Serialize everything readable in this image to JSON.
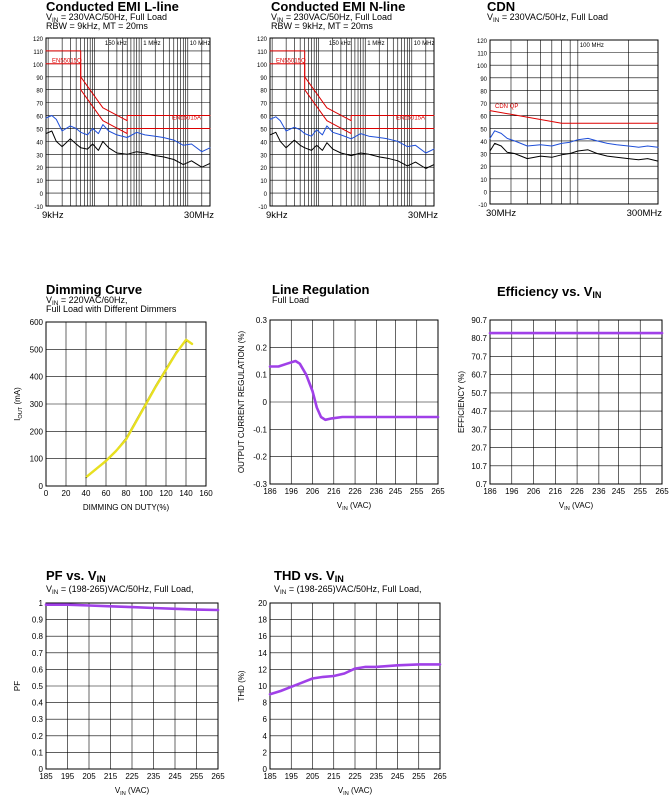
{
  "page": {
    "background": "#ffffff"
  },
  "chart_data": [
    {
      "id": "emi-l",
      "type": "line",
      "title": "Conducted EMI L-line",
      "subtitle_lines": [
        {
          "pre": "V",
          "sub": "IN",
          "post": " = 230VAC/50Hz, Full Load"
        },
        {
          "pre": "RBW = 9kHz, MT = 20ms"
        }
      ],
      "x_scale": "log",
      "x_tick_labels": [
        "9kHz",
        "30MHz"
      ],
      "xlim": [
        0.009,
        30
      ],
      "ylim": [
        -10,
        120
      ],
      "y_ticks": [
        -10,
        0,
        10,
        20,
        30,
        40,
        50,
        60,
        70,
        80,
        90,
        100,
        110,
        120
      ],
      "marker_labels": [
        "150 kHz",
        "1 MHz",
        "10 MHz"
      ],
      "marker_x": [
        0.15,
        1,
        10
      ],
      "limit_labels": [
        "EN55015Q",
        "EN55015A"
      ],
      "series": [
        {
          "color": "#dd0000",
          "x": [
            0.009,
            0.05,
            0.05,
            0.15,
            0.5,
            0.5,
            30
          ],
          "y": [
            110,
            110,
            90,
            66,
            56,
            60,
            60
          ]
        },
        {
          "color": "#dd0000",
          "x": [
            0.009,
            0.05,
            0.05,
            0.15,
            0.5,
            0.5,
            30
          ],
          "y": [
            100,
            100,
            80,
            56,
            46,
            50,
            50
          ]
        },
        {
          "color": "#1f4fd8",
          "x": [
            0.009,
            0.012,
            0.015,
            0.02,
            0.03,
            0.04,
            0.05,
            0.07,
            0.09,
            0.12,
            0.15,
            0.2,
            0.3,
            0.5,
            0.8,
            1.2,
            2,
            3,
            5,
            8,
            12,
            20,
            30
          ],
          "y": [
            58,
            60,
            57,
            48,
            52,
            50,
            47,
            45,
            50,
            46,
            53,
            48,
            45,
            43,
            47,
            45,
            44,
            43,
            41,
            37,
            38,
            32,
            35
          ]
        },
        {
          "color": "#000000",
          "x": [
            0.009,
            0.012,
            0.015,
            0.02,
            0.03,
            0.04,
            0.05,
            0.07,
            0.09,
            0.12,
            0.15,
            0.2,
            0.3,
            0.5,
            0.8,
            1.2,
            2,
            3,
            5,
            8,
            12,
            20,
            30
          ],
          "y": [
            46,
            48,
            40,
            36,
            42,
            38,
            35,
            34,
            38,
            33,
            40,
            35,
            31,
            30,
            32,
            31,
            29,
            28,
            26,
            22,
            25,
            20,
            23
          ]
        }
      ]
    },
    {
      "id": "emi-n",
      "type": "line",
      "title": "Conducted EMI N-line",
      "subtitle_lines": [
        {
          "pre": "V",
          "sub": "IN",
          "post": " = 230VAC/50Hz, Full Load"
        },
        {
          "pre": "RBW = 9kHz, MT = 20ms"
        }
      ],
      "x_scale": "log",
      "x_tick_labels": [
        "9kHz",
        "30MHz"
      ],
      "xlim": [
        0.009,
        30
      ],
      "ylim": [
        -10,
        120
      ],
      "y_ticks": [
        -10,
        0,
        10,
        20,
        30,
        40,
        50,
        60,
        70,
        80,
        90,
        100,
        110,
        120
      ],
      "marker_labels": [
        "150 kHz",
        "1 MHz",
        "10 MHz"
      ],
      "marker_x": [
        0.15,
        1,
        10
      ],
      "limit_labels": [
        "EN55015Q",
        "EN55015A"
      ],
      "series": [
        {
          "color": "#dd0000",
          "x": [
            0.009,
            0.05,
            0.05,
            0.15,
            0.5,
            0.5,
            30
          ],
          "y": [
            110,
            110,
            90,
            66,
            56,
            60,
            60
          ]
        },
        {
          "color": "#dd0000",
          "x": [
            0.009,
            0.05,
            0.05,
            0.15,
            0.5,
            0.5,
            30
          ],
          "y": [
            100,
            100,
            80,
            56,
            46,
            50,
            50
          ]
        },
        {
          "color": "#1f4fd8",
          "x": [
            0.009,
            0.012,
            0.015,
            0.02,
            0.03,
            0.04,
            0.05,
            0.07,
            0.09,
            0.12,
            0.15,
            0.2,
            0.3,
            0.5,
            0.8,
            1.2,
            2,
            3,
            5,
            8,
            12,
            20,
            30
          ],
          "y": [
            57,
            59,
            56,
            48,
            51,
            49,
            46,
            44,
            49,
            45,
            52,
            47,
            45,
            42,
            46,
            44,
            43,
            42,
            40,
            36,
            37,
            31,
            34
          ]
        },
        {
          "color": "#000000",
          "x": [
            0.009,
            0.012,
            0.015,
            0.02,
            0.03,
            0.04,
            0.05,
            0.07,
            0.09,
            0.12,
            0.15,
            0.2,
            0.3,
            0.5,
            0.8,
            1.2,
            2,
            3,
            5,
            8,
            12,
            20,
            30
          ],
          "y": [
            45,
            47,
            40,
            35,
            41,
            37,
            35,
            33,
            37,
            33,
            39,
            34,
            31,
            29,
            31,
            30,
            28,
            27,
            25,
            21,
            24,
            19,
            22
          ]
        }
      ]
    },
    {
      "id": "cdn",
      "type": "line",
      "title": "CDN",
      "subtitle_lines": [
        {
          "pre": "V",
          "sub": "IN",
          "post": " = 230VAC/50Hz, Full Load"
        }
      ],
      "x_scale": "log",
      "x_tick_labels": [
        "30MHz",
        "300MHz"
      ],
      "xlim": [
        30,
        300
      ],
      "ylim": [
        -10,
        120
      ],
      "y_ticks": [
        -10,
        0,
        10,
        20,
        30,
        40,
        50,
        60,
        70,
        80,
        90,
        100,
        110,
        120
      ],
      "marker_labels": [
        "100 MHz"
      ],
      "marker_x": [
        100
      ],
      "limit_labels": [
        "CDN QP"
      ],
      "series": [
        {
          "color": "#dd0000",
          "x": [
            30,
            80,
            230,
            300
          ],
          "y": [
            64,
            54,
            54,
            54
          ]
        },
        {
          "color": "#1f4fd8",
          "x": [
            30,
            32,
            35,
            38,
            42,
            50,
            60,
            70,
            80,
            90,
            100,
            115,
            130,
            150,
            170,
            200,
            230,
            260,
            300
          ],
          "y": [
            42,
            48,
            46,
            42,
            40,
            36,
            37,
            36,
            38,
            39,
            41,
            42,
            40,
            38,
            37,
            36,
            35,
            36,
            35
          ]
        },
        {
          "color": "#000000",
          "x": [
            30,
            32,
            35,
            38,
            42,
            50,
            60,
            70,
            80,
            90,
            100,
            115,
            130,
            150,
            170,
            200,
            230,
            260,
            300
          ],
          "y": [
            32,
            38,
            36,
            31,
            30,
            26,
            28,
            27,
            29,
            30,
            32,
            33,
            30,
            28,
            27,
            26,
            25,
            26,
            24
          ]
        }
      ]
    },
    {
      "id": "dimming",
      "type": "line",
      "title": "Dimming Curve",
      "subtitle_lines": [
        {
          "pre": "V",
          "sub": "IN",
          "post": " = 220VAC/60Hz,"
        },
        {
          "pre": "Full Load with Different Dimmers"
        }
      ],
      "xlabel": "DIMMING ON DUTY(%)",
      "ylabel": {
        "pre": "I",
        "sub": "OUT",
        "post": " (mA)"
      },
      "xlim": [
        0,
        160
      ],
      "ylim": [
        0,
        600
      ],
      "x_ticks": [
        0,
        20,
        40,
        60,
        80,
        100,
        120,
        140,
        160
      ],
      "y_ticks": [
        0,
        100,
        200,
        300,
        400,
        500,
        600
      ],
      "series": [
        {
          "color": "#000000",
          "x": [
            40,
            50,
            60,
            70,
            80,
            90,
            100,
            110,
            120,
            130,
            140,
            145
          ],
          "y": [
            30,
            60,
            95,
            130,
            175,
            240,
            305,
            370,
            430,
            490,
            530,
            525
          ]
        },
        {
          "color": "#e8e020",
          "x": [
            41,
            50,
            60,
            70,
            80,
            90,
            100,
            110,
            120,
            130,
            140,
            146
          ],
          "y": [
            35,
            62,
            92,
            128,
            170,
            235,
            300,
            365,
            425,
            485,
            535,
            520
          ]
        }
      ]
    },
    {
      "id": "line-reg",
      "type": "line",
      "title": "Line Regulation",
      "subtitle_lines": [
        {
          "pre": "Full Load"
        }
      ],
      "xlabel": {
        "pre": "V",
        "sub": "IN",
        "post": " (VAC)"
      },
      "ylabel": "OUTPUT CURRENT REGULATION (%)",
      "xlim": [
        186,
        265
      ],
      "ylim": [
        -0.3,
        0.3
      ],
      "x_ticks": [
        186,
        196,
        206,
        216,
        226,
        236,
        245,
        255,
        265
      ],
      "y_ticks": [
        -0.3,
        -0.2,
        -0.1,
        0,
        0.1,
        0.2,
        0.3
      ],
      "series": [
        {
          "color": "#a040e8",
          "x": [
            186,
            190,
            194,
            198,
            200,
            203,
            206,
            208,
            210,
            212,
            215,
            220,
            226,
            236,
            245,
            255,
            265
          ],
          "y": [
            0.13,
            0.13,
            0.14,
            0.15,
            0.14,
            0.1,
            0.04,
            -0.02,
            -0.055,
            -0.065,
            -0.06,
            -0.055,
            -0.055,
            -0.055,
            -0.055,
            -0.055,
            -0.055
          ]
        }
      ]
    },
    {
      "id": "efficiency",
      "type": "line",
      "title": {
        "pre": "Efficiency vs. V",
        "sub": "IN"
      },
      "xlabel": {
        "pre": "V",
        "sub": "IN",
        "post": " (VAC)"
      },
      "ylabel": "EFFICIENCY (%)",
      "xlim": [
        186,
        265
      ],
      "ylim": [
        0.7,
        90.7
      ],
      "x_ticks": [
        186,
        196,
        206,
        216,
        226,
        236,
        245,
        255,
        265
      ],
      "y_ticks": [
        0.7,
        10.7,
        20.7,
        30.7,
        40.7,
        50.7,
        60.7,
        70.7,
        80.7,
        90.7
      ],
      "series": [
        {
          "color": "#a040e8",
          "x": [
            186,
            196,
            206,
            216,
            226,
            236,
            245,
            255,
            265
          ],
          "y": [
            83.5,
            83.5,
            83.5,
            83.5,
            83.5,
            83.5,
            83.5,
            83.5,
            83.5
          ]
        }
      ]
    },
    {
      "id": "pf",
      "type": "line",
      "title": {
        "pre": "PF vs. V",
        "sub": "IN"
      },
      "subtitle_lines": [
        {
          "pre": "V",
          "sub": "IN",
          "post": " = (198-265)VAC/50Hz, Full Load,"
        }
      ],
      "xlabel": {
        "pre": "V",
        "sub": "IN",
        "post": " (VAC)"
      },
      "ylabel": "PF",
      "xlim": [
        185,
        265
      ],
      "ylim": [
        0,
        1
      ],
      "x_ticks": [
        185,
        195,
        205,
        215,
        225,
        235,
        245,
        255,
        265
      ],
      "y_ticks": [
        0,
        0.1,
        0.2,
        0.3,
        0.4,
        0.5,
        0.6,
        0.7,
        0.8,
        0.9,
        1
      ],
      "series": [
        {
          "color": "#a040e8",
          "x": [
            185,
            195,
            205,
            215,
            225,
            235,
            245,
            255,
            265
          ],
          "y": [
            0.99,
            0.99,
            0.985,
            0.98,
            0.975,
            0.97,
            0.965,
            0.96,
            0.958
          ]
        }
      ]
    },
    {
      "id": "thd",
      "type": "line",
      "title": {
        "pre": "THD vs. V",
        "sub": "IN"
      },
      "subtitle_lines": [
        {
          "pre": "V",
          "sub": "IN",
          "post": " = (198-265)VAC/50Hz, Full Load,"
        }
      ],
      "xlabel": {
        "pre": "V",
        "sub": "IN",
        "post": " (VAC)"
      },
      "ylabel": "THD (%)",
      "xlim": [
        185,
        265
      ],
      "ylim": [
        0,
        20
      ],
      "x_ticks": [
        185,
        195,
        205,
        215,
        225,
        235,
        245,
        255,
        265
      ],
      "y_ticks": [
        0,
        2,
        4,
        6,
        8,
        10,
        12,
        14,
        16,
        18,
        20
      ],
      "series": [
        {
          "color": "#a040e8",
          "x": [
            185,
            190,
            195,
            200,
            205,
            210,
            215,
            220,
            225,
            230,
            235,
            245,
            255,
            265
          ],
          "y": [
            9.0,
            9.4,
            9.9,
            10.4,
            10.9,
            11.1,
            11.2,
            11.5,
            12.1,
            12.3,
            12.3,
            12.5,
            12.6,
            12.6
          ]
        }
      ]
    }
  ]
}
